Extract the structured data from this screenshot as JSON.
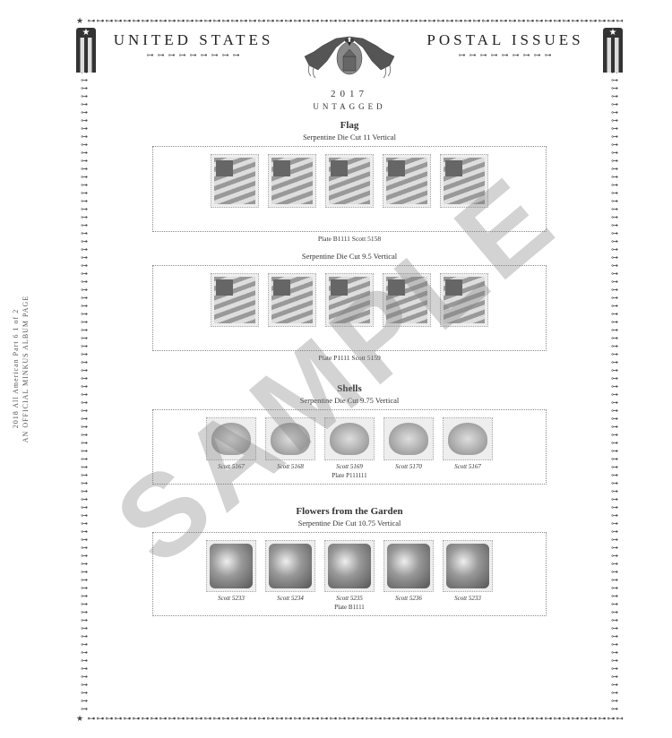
{
  "sideText": {
    "line1": "2018 All American Part 6   1 of 2",
    "line2": "AN OFFICIAL MINKUS ALBUM PAGE"
  },
  "header": {
    "titleLeft": "UNITED STATES",
    "titleRight": "POSTAL ISSUES",
    "year": "2017",
    "untagged": "UNTAGGED"
  },
  "watermark": "SAMPLE",
  "ornamentPatternH": "★ ⊶⊶⊶⊶⊶⊶⊶⊶⊶⊶⊶⊶⊶⊶⊶⊶⊶⊶⊶⊶⊶⊶⊶⊶⊶⊶⊶⊶⊶⊶⊶⊶⊶⊶⊶⊶⊶⊶⊶⊶⊶⊶⊶⊶⊶⊶⊶⊶⊶⊶⊶⊶⊶⊶⊶⊶⊶⊶⊶⊶ ★",
  "ornamentDots": "⊶ ⊶ ⊶ ⊶ ⊶ ⊶ ⊶ ⊶ ⊶",
  "sections": [
    {
      "title": "Flag",
      "groups": [
        {
          "sub": "Serpentine Die Cut 11 Vertical",
          "type": "flag",
          "caption": "Plate B1111   Scott 5158",
          "stamps": [
            {
              "label": "",
              "plate": ""
            },
            {
              "label": "",
              "plate": ""
            },
            {
              "label": "",
              "plate": ""
            },
            {
              "label": "",
              "plate": ""
            },
            {
              "label": "",
              "plate": ""
            }
          ]
        },
        {
          "sub": "Serpentine Die Cut 9.5 Vertical",
          "type": "flag",
          "caption": "Plate P1111   Scott 5159",
          "stamps": [
            {
              "label": "",
              "plate": ""
            },
            {
              "label": "",
              "plate": ""
            },
            {
              "label": "",
              "plate": ""
            },
            {
              "label": "",
              "plate": ""
            },
            {
              "label": "",
              "plate": ""
            }
          ]
        }
      ]
    },
    {
      "title": "Shells",
      "groups": [
        {
          "sub": "Serpentine Die Cut 9.75 Vertical",
          "type": "shell",
          "caption": "",
          "stamps": [
            {
              "label": "Scott 5167",
              "plate": ""
            },
            {
              "label": "Scott 5168",
              "plate": ""
            },
            {
              "label": "Scott 5169",
              "plate": "Plate P111111"
            },
            {
              "label": "Scott 5170",
              "plate": ""
            },
            {
              "label": "Scott 5167",
              "plate": ""
            }
          ]
        }
      ]
    },
    {
      "title": "Flowers from the Garden",
      "groups": [
        {
          "sub": "Serpentine Die Cut 10.75 Vertical",
          "type": "flower",
          "caption": "",
          "stamps": [
            {
              "label": "Scott 5233",
              "plate": ""
            },
            {
              "label": "Scott 5234",
              "plate": ""
            },
            {
              "label": "Scott 5235",
              "plate": "Plate B1111"
            },
            {
              "label": "Scott 5236",
              "plate": ""
            },
            {
              "label": "Scott 5233",
              "plate": ""
            }
          ]
        }
      ]
    }
  ]
}
